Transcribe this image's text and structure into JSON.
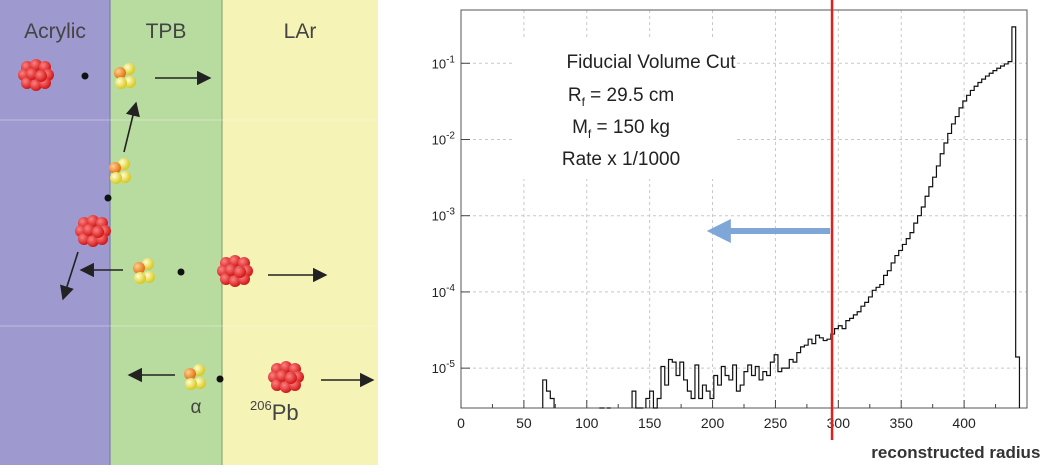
{
  "left_panel": {
    "regions": [
      {
        "label": "Acrylic",
        "color": "#9e99cf"
      },
      {
        "label": "TPB",
        "color": "#b8dca0"
      },
      {
        "label": "LAr",
        "color": "#f5f3b5"
      }
    ],
    "alpha_label": "α",
    "pb_label_sup": "206",
    "pb_label_main": "Pb"
  },
  "chart_data": {
    "type": "histogram",
    "xlabel": "reconstructed radius (mm)",
    "ylabel": "",
    "xlim": [
      0,
      450
    ],
    "ylim": [
      3e-06,
      0.5
    ],
    "yscale": "log",
    "x_ticks": [
      0,
      50,
      100,
      150,
      200,
      250,
      300,
      350,
      400
    ],
    "y_ticks": [
      {
        "value": 0.1,
        "base": "10",
        "exp": "-1"
      },
      {
        "value": 0.01,
        "base": "10",
        "exp": "-2"
      },
      {
        "value": 0.001,
        "base": "10",
        "exp": "-3"
      },
      {
        "value": 0.0001,
        "base": "10",
        "exp": "-4"
      },
      {
        "value": 1e-05,
        "base": "10",
        "exp": "-5"
      }
    ],
    "grid": true,
    "cut_line_x": 295,
    "cut_line_color": "#e02020",
    "arrow_color": "#7ea6d6",
    "annotation": {
      "title": "Fiducial Volume Cut",
      "line2_main": "R",
      "line2_sub": "f",
      "line2_rest": " = 29.5 cm",
      "line3_main": "M",
      "line3_sub": "f",
      "line3_rest": " = 150 kg",
      "line4": "Rate x 1/1000"
    },
    "bins": [
      [
        65,
        68,
        7e-06
      ],
      [
        68,
        71,
        5e-06
      ],
      [
        71,
        74,
        4e-06
      ],
      [
        110,
        114,
        3e-06
      ],
      [
        116,
        119,
        3e-06
      ],
      [
        136,
        139,
        5e-06
      ],
      [
        139,
        142,
        3e-06
      ],
      [
        142,
        145,
        3e-06
      ],
      [
        147,
        150,
        4e-06
      ],
      [
        150,
        153,
        5e-06
      ],
      [
        153,
        156,
        3e-06
      ],
      [
        156,
        159,
        4e-06
      ],
      [
        159,
        162,
        1.05e-05
      ],
      [
        162,
        165,
        6e-06
      ],
      [
        165,
        168,
        1.3e-05
      ],
      [
        168,
        171,
        1.2e-05
      ],
      [
        171,
        174,
        8e-06
      ],
      [
        174,
        177,
        1.2e-05
      ],
      [
        177,
        180,
        7e-06
      ],
      [
        180,
        183,
        5e-06
      ],
      [
        183,
        186,
        4e-06
      ],
      [
        186,
        189,
        1.1e-05
      ],
      [
        189,
        192,
        4e-06
      ],
      [
        192,
        195,
        6e-06
      ],
      [
        195,
        198,
        5e-06
      ],
      [
        198,
        201,
        4e-06
      ],
      [
        201,
        204,
        8e-06
      ],
      [
        204,
        207,
        6e-06
      ],
      [
        207,
        210,
        1.05e-05
      ],
      [
        210,
        213,
        8e-06
      ],
      [
        213,
        216,
        7e-06
      ],
      [
        216,
        219,
        1.1e-05
      ],
      [
        219,
        222,
        5e-06
      ],
      [
        222,
        225,
        6e-06
      ],
      [
        225,
        228,
        9e-06
      ],
      [
        228,
        231,
        1.1e-05
      ],
      [
        231,
        234,
        8e-06
      ],
      [
        234,
        237,
        1.05e-05
      ],
      [
        237,
        240,
        7e-06
      ],
      [
        240,
        243,
        9e-06
      ],
      [
        243,
        246,
        8e-06
      ],
      [
        246,
        249,
        1.2e-05
      ],
      [
        249,
        252,
        1.5e-05
      ],
      [
        252,
        255,
        9e-06
      ],
      [
        255,
        258,
        1e-05
      ],
      [
        258,
        261,
        1e-05
      ],
      [
        261,
        264,
        1.3e-05
      ],
      [
        264,
        267,
        1.2e-05
      ],
      [
        267,
        270,
        1.6e-05
      ],
      [
        270,
        273,
        1.9e-05
      ],
      [
        273,
        276,
        2e-05
      ],
      [
        276,
        279,
        2.4e-05
      ],
      [
        279,
        282,
        2.1e-05
      ],
      [
        282,
        285,
        2.7e-05
      ],
      [
        285,
        288,
        2.5e-05
      ],
      [
        288,
        291,
        2.3e-05
      ],
      [
        291,
        294,
        2.4e-05
      ],
      [
        294,
        297,
        2.8e-05
      ],
      [
        297,
        300,
        3.3e-05
      ],
      [
        300,
        303,
        3.6e-05
      ],
      [
        303,
        306,
        3.3e-05
      ],
      [
        306,
        309,
        4.2e-05
      ],
      [
        309,
        312,
        4.5e-05
      ],
      [
        312,
        315,
        5e-05
      ],
      [
        315,
        318,
        5.5e-05
      ],
      [
        318,
        321,
        6.5e-05
      ],
      [
        321,
        324,
        7.3e-05
      ],
      [
        324,
        327,
        8.6e-05
      ],
      [
        327,
        330,
        0.000105
      ],
      [
        330,
        333,
        0.000115
      ],
      [
        333,
        336,
        0.000125
      ],
      [
        336,
        339,
        0.000165
      ],
      [
        339,
        342,
        0.00019
      ],
      [
        342,
        345,
        0.00024
      ],
      [
        345,
        348,
        0.0003
      ],
      [
        348,
        351,
        0.00035
      ],
      [
        351,
        354,
        0.00042
      ],
      [
        354,
        357,
        0.0005
      ],
      [
        357,
        360,
        0.0006
      ],
      [
        360,
        363,
        0.0008
      ],
      [
        363,
        366,
        0.001
      ],
      [
        366,
        369,
        0.0013
      ],
      [
        369,
        372,
        0.0018
      ],
      [
        372,
        375,
        0.0024
      ],
      [
        375,
        378,
        0.0032
      ],
      [
        378,
        381,
        0.0045
      ],
      [
        381,
        384,
        0.0065
      ],
      [
        384,
        387,
        0.009
      ],
      [
        387,
        390,
        0.012
      ],
      [
        390,
        393,
        0.016
      ],
      [
        393,
        396,
        0.02
      ],
      [
        396,
        399,
        0.026
      ],
      [
        399,
        402,
        0.032
      ],
      [
        402,
        405,
        0.038
      ],
      [
        405,
        408,
        0.044
      ],
      [
        408,
        411,
        0.05
      ],
      [
        411,
        414,
        0.056
      ],
      [
        414,
        417,
        0.062
      ],
      [
        417,
        420,
        0.068
      ],
      [
        420,
        423,
        0.074
      ],
      [
        423,
        426,
        0.08
      ],
      [
        426,
        429,
        0.086
      ],
      [
        429,
        432,
        0.092
      ],
      [
        432,
        435,
        0.098
      ],
      [
        435,
        438,
        0.105
      ],
      [
        438,
        441,
        0.3
      ],
      [
        441,
        444,
        1.4e-05
      ]
    ]
  }
}
